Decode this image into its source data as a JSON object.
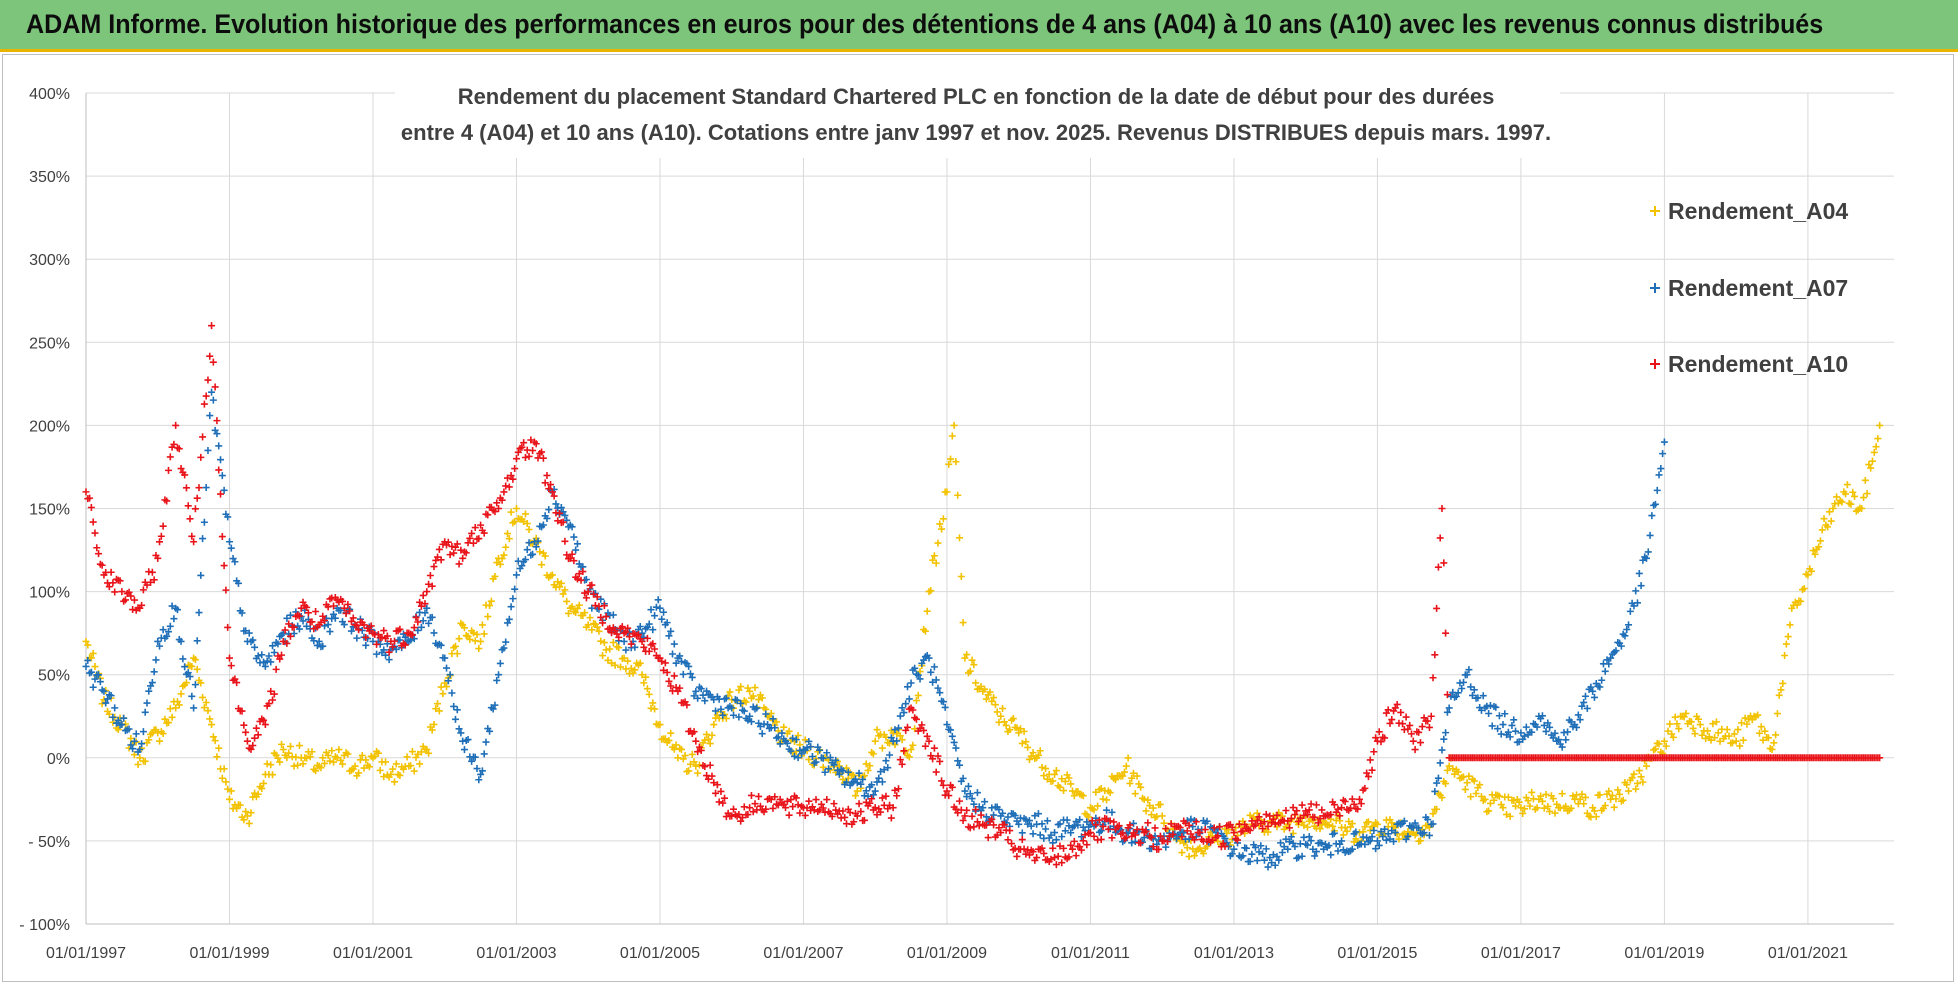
{
  "banner": {
    "title": "ADAM Informe. Evolution historique des performances en euros pour des détentions de 4 ans (A04) à 10 ans (A10) avec les revenus connus distribués"
  },
  "chart_data": {
    "type": "scatter",
    "title_line1": "Rendement du placement Standard Chartered PLC en fonction de la date de début pour des durées",
    "title_line2": "entre 4 (A04) et 10 ans (A10).  Cotations entre janv 1997 et nov. 2025. Revenus DISTRIBUES depuis mars. 1997.",
    "xlabel": "",
    "ylabel": "",
    "x_range": [
      1997.0,
      2022.2
    ],
    "ylim": [
      -100,
      400
    ],
    "y_ticks": [
      -100,
      -50,
      0,
      50,
      100,
      150,
      200,
      250,
      300,
      350,
      400
    ],
    "y_tick_labels": [
      "- 100%",
      "- 50%",
      "0%",
      "50%",
      "100%",
      "150%",
      "200%",
      "250%",
      "300%",
      "350%",
      "400%"
    ],
    "x_ticks": [
      1997,
      1999,
      2001,
      2003,
      2005,
      2007,
      2009,
      2011,
      2013,
      2015,
      2017,
      2019,
      2021
    ],
    "x_tick_labels": [
      "01/01/1997",
      "01/01/1999",
      "01/01/2001",
      "01/01/2003",
      "01/01/2005",
      "01/01/2007",
      "01/01/2009",
      "01/01/2011",
      "01/01/2013",
      "01/01/2015",
      "01/01/2017",
      "01/01/2019",
      "01/01/2021"
    ],
    "grid": true,
    "legend_position": "top-right",
    "series": [
      {
        "name": "Rendement_A04",
        "color": "#f2c200",
        "x": [
          1997.0,
          1997.25,
          1997.5,
          1997.75,
          1998.0,
          1998.25,
          1998.5,
          1998.75,
          1999.0,
          1999.25,
          1999.5,
          1999.75,
          2000.0,
          2000.25,
          2000.5,
          2000.75,
          2001.0,
          2001.25,
          2001.5,
          2001.75,
          2002.0,
          2002.25,
          2002.5,
          2002.75,
          2003.0,
          2003.25,
          2003.5,
          2003.75,
          2004.0,
          2004.25,
          2004.5,
          2004.75,
          2005.0,
          2005.25,
          2005.5,
          2005.75,
          2006.0,
          2006.25,
          2006.5,
          2006.75,
          2007.0,
          2007.25,
          2007.5,
          2007.75,
          2008.0,
          2008.25,
          2008.5,
          2008.75,
          2009.0,
          2009.1,
          2009.25,
          2009.5,
          2009.75,
          2010.0,
          2010.25,
          2010.5,
          2010.75,
          2011.0,
          2011.25,
          2011.5,
          2011.75,
          2012.0,
          2012.25,
          2012.5,
          2012.75,
          2013.0,
          2013.25,
          2013.5,
          2013.75,
          2014.0,
          2014.25,
          2014.5,
          2014.75,
          2015.0,
          2015.25,
          2015.5,
          2015.75,
          2016.0,
          2016.25,
          2016.5,
          2016.75,
          2017.0,
          2017.25,
          2017.5,
          2017.75,
          2018.0,
          2018.25,
          2018.5,
          2018.75,
          2019.0,
          2019.25,
          2019.5,
          2019.75,
          2020.0,
          2020.25,
          2020.5,
          2020.75,
          2021.0,
          2021.25,
          2021.5,
          2021.75,
          2022.0
        ],
        "y": [
          70,
          35,
          20,
          0,
          15,
          30,
          60,
          20,
          -25,
          -35,
          -10,
          5,
          0,
          -5,
          0,
          -5,
          0,
          -10,
          -5,
          5,
          45,
          80,
          70,
          120,
          150,
          130,
          110,
          90,
          80,
          65,
          60,
          50,
          20,
          0,
          -5,
          20,
          35,
          40,
          25,
          10,
          5,
          0,
          -5,
          -20,
          10,
          15,
          5,
          100,
          160,
          200,
          60,
          40,
          25,
          15,
          0,
          -10,
          -20,
          -30,
          -20,
          -5,
          -25,
          -35,
          -50,
          -55,
          -48,
          -45,
          -40,
          -38,
          -40,
          -35,
          -38,
          -42,
          -45,
          -40,
          -42,
          -45,
          -40,
          -5,
          -15,
          -25,
          -30,
          -30,
          -25,
          -28,
          -25,
          -30,
          -25,
          -20,
          -5,
          10,
          25,
          20,
          15,
          10,
          25,
          5,
          80,
          110,
          140,
          160,
          150,
          200
        ]
      },
      {
        "name": "Rendement_A07",
        "color": "#1f6fb8",
        "x": [
          1997.0,
          1997.25,
          1997.5,
          1997.75,
          1998.0,
          1998.25,
          1998.5,
          1998.75,
          1999.0,
          1999.25,
          1999.5,
          1999.75,
          2000.0,
          2000.25,
          2000.5,
          2000.75,
          2001.0,
          2001.25,
          2001.5,
          2001.75,
          2002.0,
          2002.25,
          2002.5,
          2002.75,
          2003.0,
          2003.25,
          2003.5,
          2003.75,
          2004.0,
          2004.25,
          2004.5,
          2004.75,
          2005.0,
          2005.25,
          2005.5,
          2005.75,
          2006.0,
          2006.25,
          2006.5,
          2006.75,
          2007.0,
          2007.25,
          2007.5,
          2007.75,
          2008.0,
          2008.25,
          2008.5,
          2008.75,
          2009.0,
          2009.25,
          2009.5,
          2009.75,
          2010.0,
          2010.25,
          2010.5,
          2010.75,
          2011.0,
          2011.25,
          2011.5,
          2011.75,
          2012.0,
          2012.25,
          2012.5,
          2012.75,
          2013.0,
          2013.25,
          2013.5,
          2013.75,
          2014.0,
          2014.25,
          2014.5,
          2014.75,
          2015.0,
          2015.25,
          2015.5,
          2015.75,
          2016.0,
          2016.25,
          2016.5,
          2016.75,
          2017.0,
          2017.25,
          2017.5,
          2017.75,
          2018.0,
          2018.25,
          2018.5,
          2018.75,
          2019.0
        ],
        "y": [
          55,
          40,
          20,
          5,
          70,
          90,
          30,
          220,
          130,
          70,
          55,
          75,
          85,
          70,
          90,
          80,
          70,
          65,
          70,
          90,
          60,
          10,
          -10,
          50,
          110,
          130,
          160,
          140,
          100,
          85,
          70,
          75,
          90,
          60,
          40,
          35,
          30,
          25,
          20,
          10,
          5,
          0,
          -10,
          -15,
          -20,
          10,
          45,
          60,
          20,
          -20,
          -30,
          -35,
          -40,
          -40,
          -45,
          -42,
          -40,
          -38,
          -45,
          -48,
          -50,
          -45,
          -43,
          -45,
          -55,
          -58,
          -60,
          -55,
          -52,
          -55,
          -50,
          -52,
          -50,
          -45,
          -42,
          -40,
          30,
          50,
          30,
          20,
          15,
          25,
          10,
          20,
          40,
          60,
          80,
          120,
          190
        ]
      },
      {
        "name": "Rendement_A10",
        "color": "#e8141a",
        "x": [
          1997.0,
          1997.25,
          1997.5,
          1997.75,
          1998.0,
          1998.25,
          1998.5,
          1998.75,
          1999.0,
          1999.25,
          1999.5,
          1999.75,
          2000.0,
          2000.25,
          2000.5,
          2000.75,
          2001.0,
          2001.25,
          2001.5,
          2001.75,
          2002.0,
          2002.25,
          2002.5,
          2002.75,
          2003.0,
          2003.25,
          2003.5,
          2003.75,
          2004.0,
          2004.25,
          2004.5,
          2004.75,
          2005.0,
          2005.25,
          2005.5,
          2005.75,
          2006.0,
          2006.25,
          2006.5,
          2006.75,
          2007.0,
          2007.25,
          2007.5,
          2007.75,
          2008.0,
          2008.25,
          2008.5,
          2008.75,
          2009.0,
          2009.25,
          2009.5,
          2009.75,
          2010.0,
          2010.25,
          2010.5,
          2010.75,
          2011.0,
          2011.25,
          2011.5,
          2011.75,
          2012.0,
          2012.25,
          2012.5,
          2012.75,
          2013.0,
          2013.25,
          2013.5,
          2013.75,
          2014.0,
          2014.25,
          2014.5,
          2014.75,
          2015.0,
          2015.25,
          2015.5,
          2015.75,
          2015.9,
          2016.0,
          2016.5,
          2017.0,
          2017.5,
          2018.0,
          2018.5,
          2019.0,
          2019.5,
          2020.0,
          2020.5,
          2021.0,
          2021.5,
          2022.0
        ],
        "y": [
          160,
          110,
          100,
          90,
          120,
          200,
          130,
          260,
          60,
          10,
          20,
          70,
          90,
          80,
          95,
          80,
          75,
          70,
          75,
          100,
          130,
          120,
          140,
          150,
          180,
          190,
          160,
          120,
          100,
          85,
          75,
          70,
          60,
          40,
          10,
          -15,
          -35,
          -30,
          -25,
          -30,
          -30,
          -28,
          -32,
          -35,
          -30,
          -30,
          30,
          10,
          -20,
          -35,
          -40,
          -45,
          -55,
          -60,
          -60,
          -55,
          -45,
          -43,
          -48,
          -45,
          -50,
          -42,
          -45,
          -48,
          -45,
          -38,
          -35,
          -38,
          -32,
          -35,
          -30,
          -25,
          10,
          30,
          10,
          25,
          150,
          0,
          0,
          0,
          0,
          0,
          0,
          0,
          0,
          0,
          0,
          0,
          0,
          0
        ]
      }
    ]
  }
}
